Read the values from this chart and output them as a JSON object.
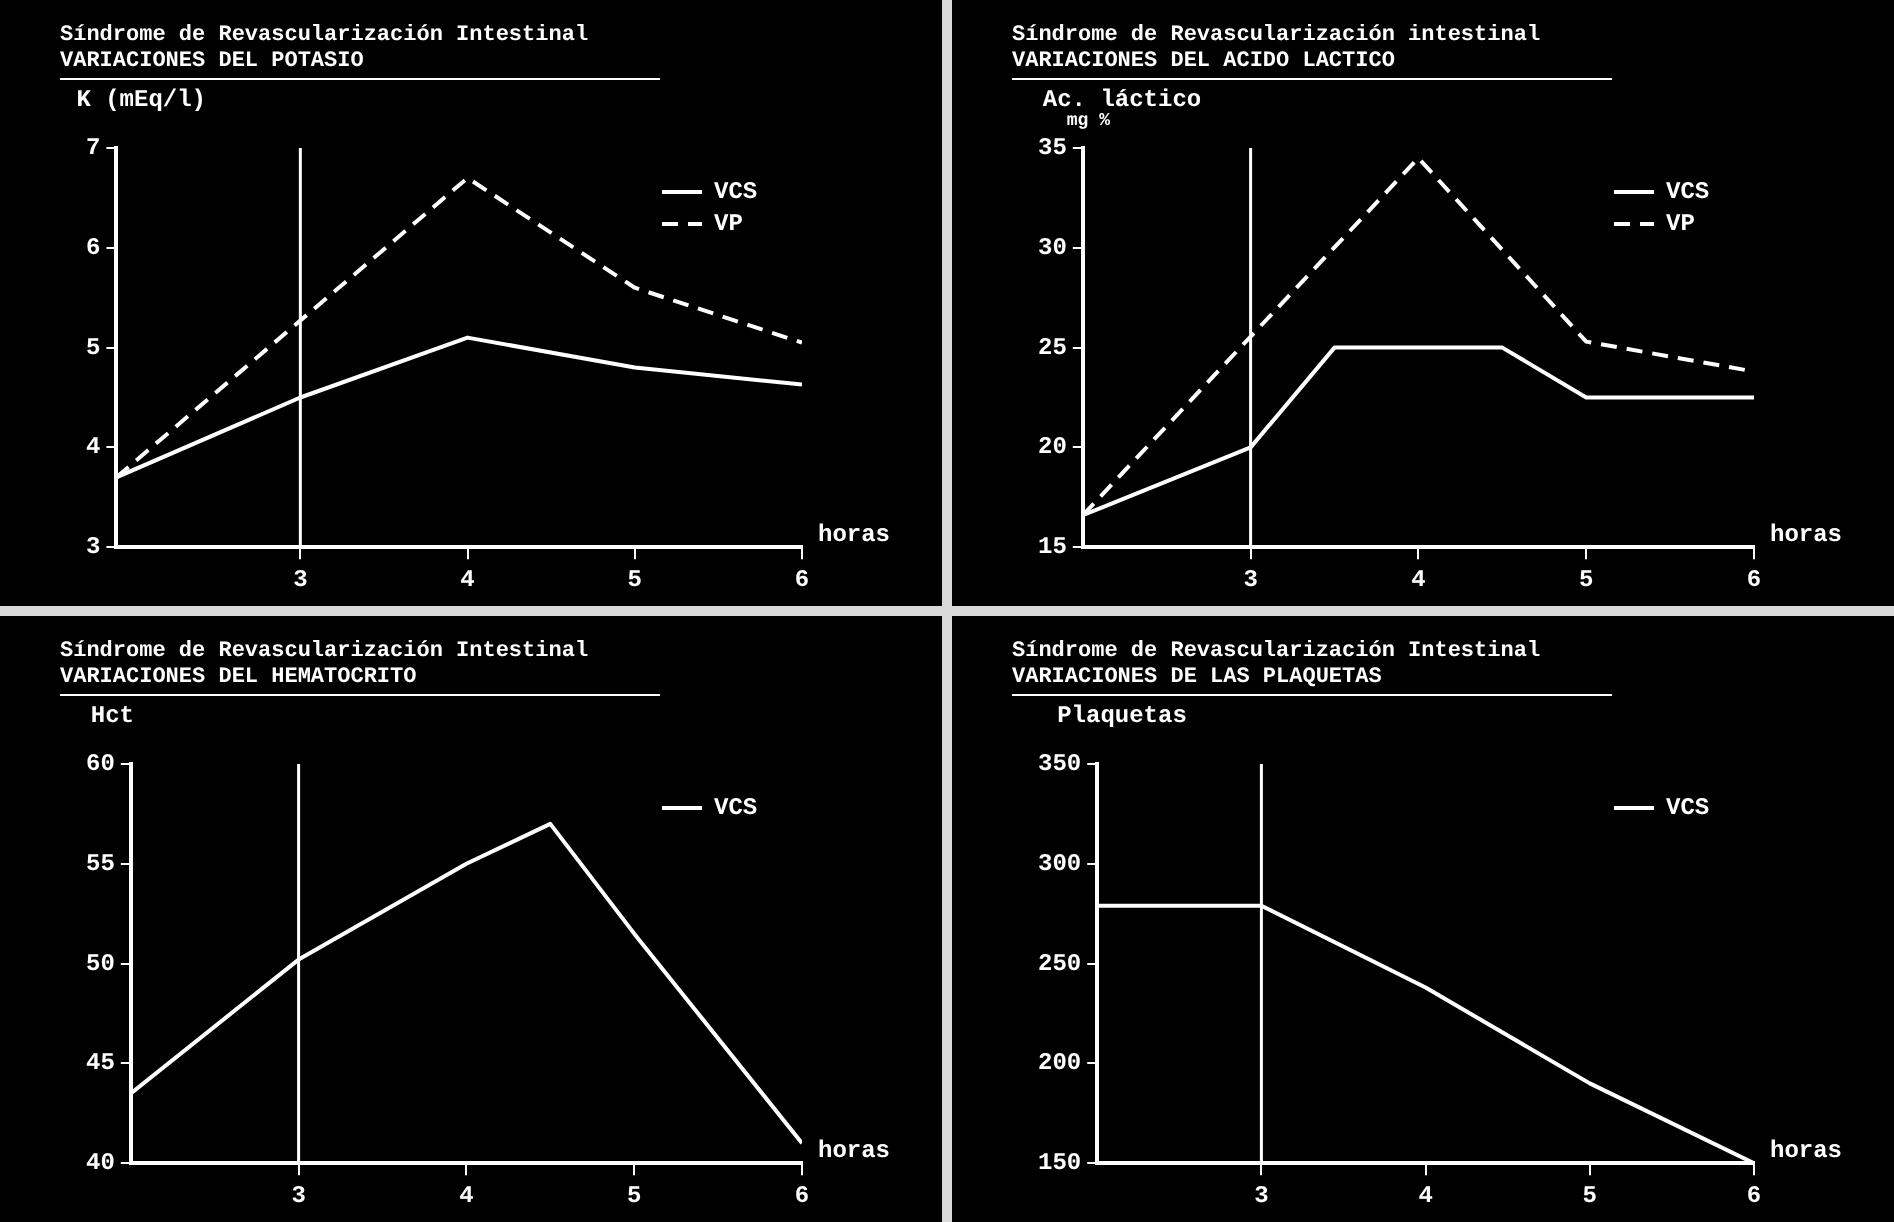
{
  "chart_data": [
    {
      "type": "line",
      "title": "Síndrome de Revascularización Intestinal",
      "subtitle": "VARIACIONES DEL POTASIO",
      "ylabel": "K (mEq/l)",
      "xlabel": "horas",
      "xlim": [
        1.9,
        6
      ],
      "xticks": [
        3,
        4,
        5,
        6
      ],
      "ylim": [
        3,
        7
      ],
      "yticks": [
        3,
        4,
        5,
        6,
        7
      ],
      "ref_lines": [
        {
          "axis": "x",
          "value": 3
        }
      ],
      "legend": "top right",
      "grid": false,
      "marker": "none",
      "series": [
        {
          "name": "VCS",
          "color": "#ffffff",
          "line_style": "solid",
          "x": [
            1.9,
            3,
            4,
            5,
            6
          ],
          "values": [
            3.7,
            4.5,
            5.1,
            4.8,
            4.63
          ]
        },
        {
          "name": "VP",
          "color": "#ffffff",
          "line_style": "dashed",
          "x": [
            1.9,
            4,
            5,
            6
          ],
          "values": [
            3.7,
            6.7,
            5.6,
            5.05
          ]
        }
      ]
    },
    {
      "type": "line",
      "title": "Síndrome de Revascularización intestinal",
      "subtitle": "VARIACIONES DEL ACIDO LACTICO",
      "ylabel": "Ac. láctico\nmg %",
      "xlabel": "horas",
      "xlim": [
        2,
        6
      ],
      "xticks": [
        3,
        4,
        5,
        6
      ],
      "ylim": [
        15,
        35
      ],
      "yticks": [
        15,
        20,
        25,
        30,
        35
      ],
      "ref_lines": [
        {
          "axis": "x",
          "value": 3
        }
      ],
      "legend": "top right",
      "grid": false,
      "marker": "none",
      "series": [
        {
          "name": "VCS",
          "color": "#ffffff",
          "line_style": "solid",
          "x": [
            2,
            3,
            3.5,
            4,
            4.5,
            5,
            6
          ],
          "values": [
            16.6,
            20,
            25,
            25,
            25,
            22.5,
            22.5
          ]
        },
        {
          "name": "VP",
          "color": "#ffffff",
          "line_style": "dashed",
          "x": [
            2,
            4,
            5,
            6
          ],
          "values": [
            16.6,
            34.5,
            25.3,
            23.8
          ]
        }
      ]
    },
    {
      "type": "line",
      "title": "Síndrome de Revascularización Intestinal",
      "subtitle": "VARIACIONES DEL HEMATOCRITO",
      "ylabel": "Hct",
      "xlabel": "horas",
      "xlim": [
        2,
        6
      ],
      "xticks": [
        3,
        4,
        5,
        6
      ],
      "ylim": [
        40,
        60
      ],
      "yticks": [
        40,
        45,
        50,
        55,
        60
      ],
      "ref_lines": [
        {
          "axis": "x",
          "value": 3
        }
      ],
      "legend": "top right",
      "grid": false,
      "marker": "none",
      "series": [
        {
          "name": "VCS",
          "color": "#ffffff",
          "line_style": "solid",
          "x": [
            2,
            3,
            4,
            4.5,
            5,
            6
          ],
          "values": [
            43.5,
            50.2,
            55,
            57,
            51.5,
            41
          ]
        }
      ]
    },
    {
      "type": "line",
      "title": "Síndrome de Revascularización Intestinal",
      "subtitle": "VARIACIONES DE LAS PLAQUETAS",
      "ylabel": "Plaquetas",
      "xlabel": "horas",
      "xlim": [
        2,
        6
      ],
      "xticks": [
        3,
        4,
        5,
        6
      ],
      "ylim": [
        150,
        350
      ],
      "yticks": [
        150,
        200,
        250,
        300,
        350
      ],
      "ref_lines": [
        {
          "axis": "x",
          "value": 3
        }
      ],
      "legend": "top right",
      "grid": false,
      "marker": "none",
      "series": [
        {
          "name": "VCS",
          "color": "#ffffff",
          "line_style": "solid",
          "x": [
            2,
            3,
            4,
            5,
            6
          ],
          "values": [
            279,
            279,
            238,
            190,
            150
          ]
        }
      ]
    }
  ]
}
